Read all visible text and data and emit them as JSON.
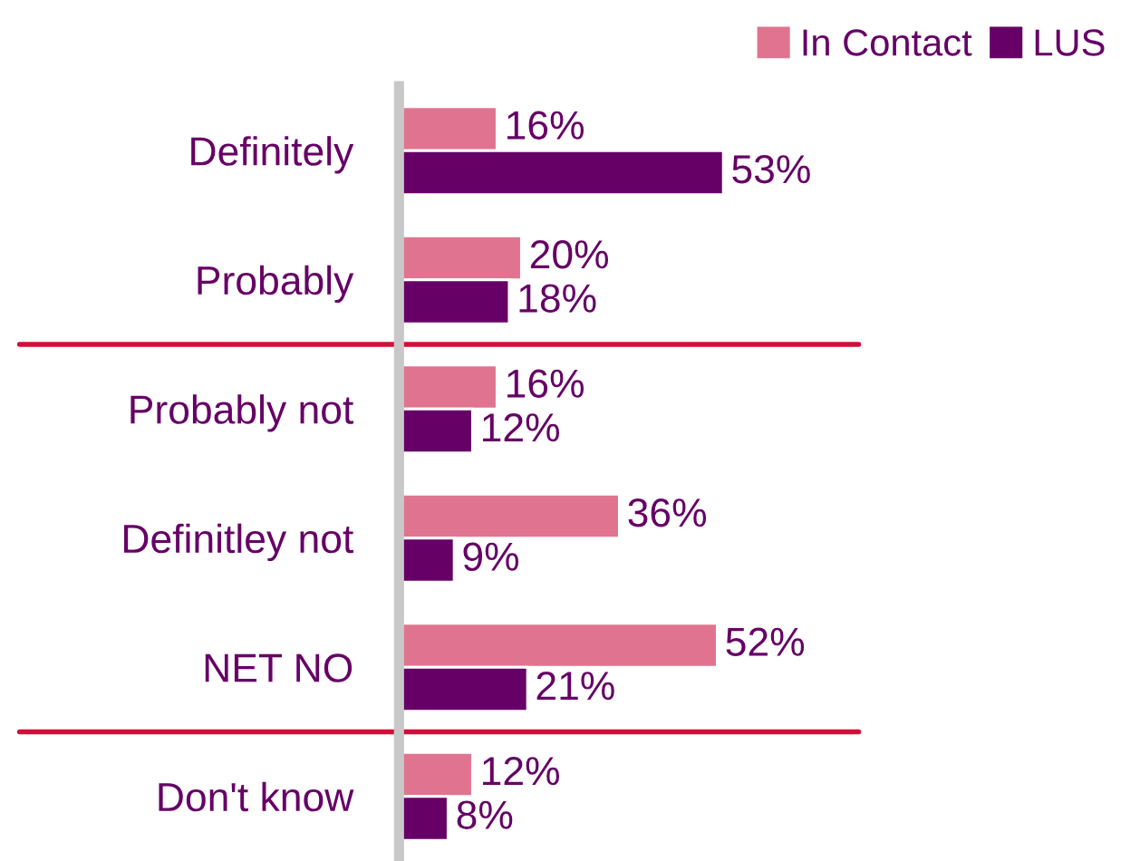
{
  "chart_data": {
    "type": "bar",
    "orientation": "horizontal",
    "legend": "top right",
    "categories": [
      "Definitely",
      "Probably",
      "Probably not",
      "Definitley not",
      "NET NO",
      "Don't know"
    ],
    "series": [
      {
        "name": "In Contact",
        "color": "#e07490",
        "values": [
          16,
          20,
          16,
          36,
          52,
          12
        ],
        "value_labels": [
          "16%",
          "20%",
          "16%",
          "36%",
          "52%",
          "12%"
        ]
      },
      {
        "name": "LUS",
        "color": "#660066",
        "values": [
          53,
          18,
          12,
          9,
          21,
          8
        ],
        "value_labels": [
          "53%",
          "18%",
          "12%",
          "9%",
          "21%",
          "8%"
        ]
      }
    ]
  }
}
